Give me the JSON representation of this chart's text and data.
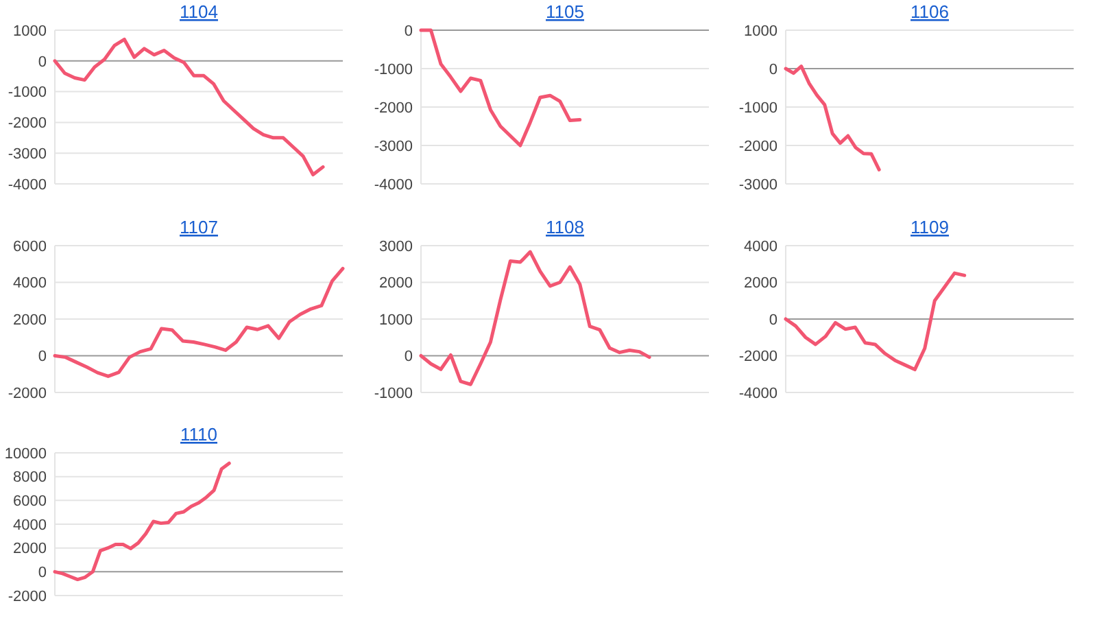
{
  "chart_data": [
    {
      "type": "line",
      "title": "1104",
      "categories": [
        null,
        null,
        null,
        null,
        null,
        null,
        null,
        null,
        null,
        null,
        null,
        null,
        null,
        null,
        null,
        null,
        null,
        null,
        null,
        null,
        null,
        null,
        null,
        null,
        null,
        null,
        null,
        null,
        null,
        null
      ],
      "series": [
        {
          "color": "#f25672",
          "values": [
            0,
            -400,
            -550,
            -620,
            -200,
            50,
            500,
            700,
            120,
            400,
            200,
            340,
            100,
            -50,
            -480,
            -480,
            -750,
            -1300,
            -1600,
            -1900,
            -2200,
            -2400,
            -2500,
            -2500,
            -2800,
            -3100,
            -3700,
            -3450,
            null,
            null
          ]
        }
      ],
      "ylim": [
        -4000,
        1000
      ],
      "yticks": [
        -4000,
        -3000,
        -2000,
        -1000,
        0,
        1000
      ],
      "grid": "y",
      "line_style": "solid"
    },
    {
      "type": "line",
      "title": "1105",
      "categories": [
        null,
        null,
        null,
        null,
        null,
        null,
        null,
        null,
        null,
        null,
        null,
        null,
        null,
        null,
        null,
        null,
        null,
        null,
        null,
        null,
        null,
        null,
        null,
        null,
        null,
        null,
        null,
        null,
        null,
        null
      ],
      "series": [
        {
          "color": "#f25672",
          "values": [
            0,
            0,
            -880,
            -1220,
            -1590,
            -1250,
            -1310,
            -2070,
            -2500,
            -2750,
            -3000,
            -2400,
            -1750,
            -1700,
            -1850,
            -2350,
            -2330,
            null,
            null,
            null,
            null,
            null,
            null,
            null,
            null,
            null,
            null,
            null,
            null,
            null
          ]
        }
      ],
      "ylim": [
        -4000,
        0
      ],
      "yticks": [
        -4000,
        -3000,
        -2000,
        -1000,
        0
      ],
      "grid": "y",
      "line_style": "solid"
    },
    {
      "type": "line",
      "title": "1106",
      "categories": [
        null,
        null,
        null,
        null,
        null,
        null,
        null,
        null,
        null,
        null,
        null,
        null,
        null,
        null,
        null,
        null,
        null,
        null,
        null,
        null,
        null,
        null,
        null,
        null,
        null,
        null,
        null,
        null,
        null,
        null,
        null,
        null,
        null,
        null,
        null,
        null,
        null,
        null
      ],
      "series": [
        {
          "color": "#f25672",
          "values": [
            0,
            -120,
            60,
            -380,
            -690,
            -940,
            -1690,
            -1940,
            -1750,
            -2060,
            -2210,
            -2220,
            -2630,
            null,
            null,
            null,
            null,
            null,
            null,
            null,
            null,
            null,
            null,
            null,
            null,
            null,
            null,
            null,
            null,
            null,
            null,
            null,
            null,
            null,
            null,
            null,
            null,
            null
          ]
        }
      ],
      "ylim": [
        -3000,
        1000
      ],
      "yticks": [
        -3000,
        -2000,
        -1000,
        0,
        1000
      ],
      "grid": "y",
      "line_style": "solid"
    },
    {
      "type": "line",
      "title": "1107",
      "categories": [
        null,
        null,
        null,
        null,
        null,
        null,
        null,
        null,
        null,
        null,
        null,
        null,
        null,
        null,
        null,
        null,
        null,
        null,
        null,
        null,
        null,
        null,
        null,
        null,
        null,
        null,
        null,
        null
      ],
      "series": [
        {
          "color": "#f25672",
          "values": [
            0,
            -80,
            -350,
            -620,
            -920,
            -1120,
            -900,
            -80,
            220,
            380,
            1480,
            1400,
            800,
            750,
            620,
            480,
            300,
            750,
            1550,
            1430,
            1630,
            950,
            1850,
            2250,
            2550,
            2730,
            4070,
            4750
          ]
        }
      ],
      "ylim": [
        -2000,
        6000
      ],
      "yticks": [
        -2000,
        0,
        2000,
        4000,
        6000
      ],
      "grid": "y",
      "line_style": "solid"
    },
    {
      "type": "line",
      "title": "1108",
      "categories": [
        null,
        null,
        null,
        null,
        null,
        null,
        null,
        null,
        null,
        null,
        null,
        null,
        null,
        null,
        null,
        null,
        null,
        null,
        null,
        null,
        null,
        null,
        null,
        null,
        null,
        null,
        null,
        null,
        null,
        null
      ],
      "series": [
        {
          "color": "#f25672",
          "values": [
            0,
            -220,
            -370,
            20,
            -700,
            -780,
            -220,
            370,
            1520,
            2580,
            2550,
            2830,
            2300,
            1900,
            2000,
            2420,
            1950,
            800,
            710,
            210,
            90,
            150,
            110,
            -40,
            null,
            null,
            null,
            null,
            null,
            null
          ]
        }
      ],
      "ylim": [
        -1000,
        3000
      ],
      "yticks": [
        -1000,
        0,
        1000,
        2000,
        3000
      ],
      "grid": "y",
      "line_style": "solid"
    },
    {
      "type": "line",
      "title": "1109",
      "categories": [
        null,
        null,
        null,
        null,
        null,
        null,
        null,
        null,
        null,
        null,
        null,
        null,
        null,
        null,
        null,
        null,
        null,
        null,
        null,
        null,
        null,
        null,
        null,
        null,
        null,
        null,
        null,
        null,
        null,
        null
      ],
      "series": [
        {
          "color": "#f25672",
          "values": [
            0,
            -380,
            -1000,
            -1380,
            -950,
            -200,
            -550,
            -450,
            -1300,
            -1380,
            -1880,
            -2250,
            -2500,
            -2750,
            -1600,
            1000,
            1750,
            2500,
            2380,
            null,
            null,
            null,
            null,
            null,
            null,
            null,
            null,
            null,
            null,
            null
          ]
        }
      ],
      "ylim": [
        -4000,
        4000
      ],
      "yticks": [
        -4000,
        -2000,
        0,
        2000,
        4000
      ],
      "grid": "y",
      "line_style": "solid"
    },
    {
      "type": "line",
      "title": "1110",
      "categories": [
        null,
        null,
        null,
        null,
        null,
        null,
        null,
        null,
        null,
        null,
        null,
        null,
        null,
        null,
        null,
        null,
        null,
        null,
        null,
        null,
        null,
        null,
        null,
        null,
        null,
        null,
        null,
        null,
        null,
        null,
        null,
        null,
        null,
        null,
        null,
        null,
        null,
        null,
        null
      ],
      "series": [
        {
          "color": "#f25672",
          "values": [
            0,
            -150,
            -400,
            -650,
            -460,
            0,
            1770,
            2000,
            2300,
            2300,
            1960,
            2420,
            3200,
            4230,
            4080,
            4150,
            4900,
            5040,
            5500,
            5800,
            6270,
            6850,
            8650,
            9120,
            null,
            null,
            null,
            null,
            null,
            null,
            null,
            null,
            null,
            null,
            null,
            null,
            null,
            null,
            null
          ]
        }
      ],
      "ylim": [
        -2000,
        10000
      ],
      "yticks": [
        -2000,
        0,
        2000,
        4000,
        6000,
        8000,
        10000
      ],
      "grid": "y",
      "line_style": "solid"
    }
  ]
}
